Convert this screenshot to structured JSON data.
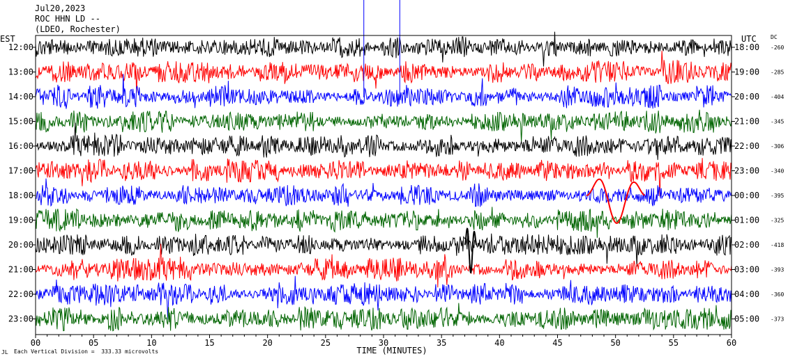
{
  "header": {
    "date": "Jul20,2023",
    "station": "ROC HHN LD --",
    "network": "(LDEO, Rochester)"
  },
  "axis_labels": {
    "left_zone": "EST",
    "right_zone": "UTC",
    "dc": "DC",
    "x_title": "TIME (MINUTES)"
  },
  "footer": {
    "logo_mark": "JL",
    "scale_note": "Each Vertical Division =  333.33 microvolts"
  },
  "colors": {
    "trace_cycle": [
      "#000000",
      "#ff0000",
      "#0000ff",
      "#006400"
    ],
    "axis": "#000000",
    "background": "#ffffff"
  },
  "chart_data": {
    "type": "line",
    "title": "ROC HHN LD --",
    "xlabel": "TIME (MINUTES)",
    "x_ticks": [
      "00",
      "05",
      "10",
      "15",
      "20",
      "25",
      "30",
      "35",
      "40",
      "45",
      "50",
      "55",
      "60"
    ],
    "xlim": [
      0,
      60
    ],
    "rows": [
      {
        "est": "12:00",
        "utc": "18:00",
        "dc": "-260",
        "color": "#000000"
      },
      {
        "est": "13:00",
        "utc": "19:00",
        "dc": "-285",
        "color": "#ff0000"
      },
      {
        "est": "14:00",
        "utc": "20:00",
        "dc": "-404",
        "color": "#0000ff"
      },
      {
        "est": "15:00",
        "utc": "21:00",
        "dc": "-345",
        "color": "#006400"
      },
      {
        "est": "16:00",
        "utc": "22:00",
        "dc": "-306",
        "color": "#000000"
      },
      {
        "est": "17:00",
        "utc": "23:00",
        "dc": "-340",
        "color": "#ff0000"
      },
      {
        "est": "18:00",
        "utc": "00:00",
        "dc": "-395",
        "color": "#0000ff"
      },
      {
        "est": "19:00",
        "utc": "01:00",
        "dc": "-325",
        "color": "#006400"
      },
      {
        "est": "20:00",
        "utc": "02:00",
        "dc": "-418",
        "color": "#000000"
      },
      {
        "est": "21:00",
        "utc": "03:00",
        "dc": "-393",
        "color": "#ff0000"
      },
      {
        "est": "22:00",
        "utc": "04:00",
        "dc": "-360",
        "color": "#0000ff"
      },
      {
        "est": "23:00",
        "utc": "05:00",
        "dc": "-373",
        "color": "#006400"
      }
    ],
    "events": [
      {
        "row": 6,
        "minute_start": 47.5,
        "minute_end": 52.5,
        "color": "#ff0000"
      },
      {
        "row": 8,
        "minute_start": 37,
        "minute_end": 38,
        "color": "#000000"
      }
    ],
    "scale_microvolts_per_division": 333.33
  }
}
